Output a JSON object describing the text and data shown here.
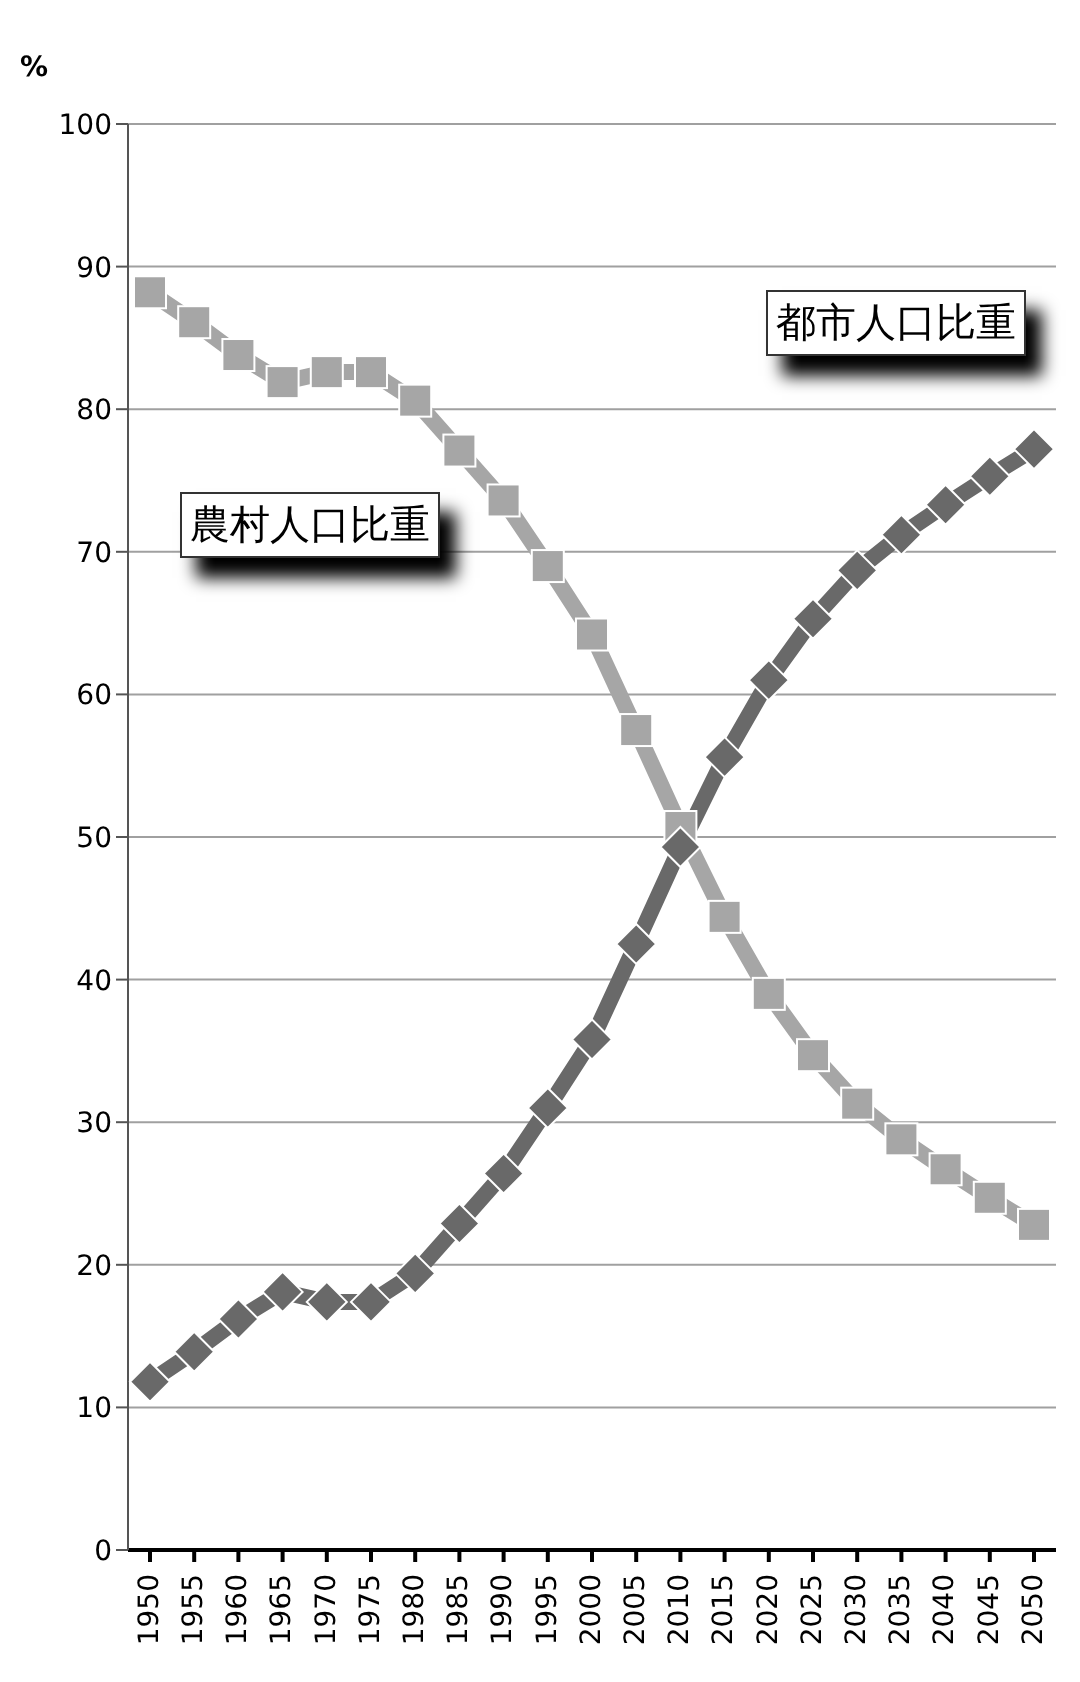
{
  "chart_data": {
    "type": "line",
    "ylabel": "%",
    "categories": [
      "1950",
      "1955",
      "1960",
      "1965",
      "1970",
      "1975",
      "1980",
      "1985",
      "1990",
      "1995",
      "2000",
      "2005",
      "2010",
      "2015",
      "2020",
      "2025",
      "2030",
      "2035",
      "2040",
      "2045",
      "2050"
    ],
    "series": [
      {
        "name": "農村人口比重",
        "color": "#a6a6a6",
        "marker": "square",
        "values": [
          88.2,
          86.1,
          83.8,
          81.9,
          82.6,
          82.6,
          80.6,
          77.1,
          73.6,
          69,
          64.2,
          57.5,
          50.7,
          44.4,
          39,
          34.7,
          31.3,
          28.8,
          26.7,
          24.7,
          22.8
        ]
      },
      {
        "name": "都市人口比重",
        "color": "#696969",
        "marker": "diamond",
        "values": [
          11.8,
          13.9,
          16.2,
          18.1,
          17.4,
          17.4,
          19.4,
          22.9,
          26.4,
          31,
          35.8,
          42.5,
          49.3,
          55.6,
          61,
          65.3,
          68.7,
          71.2,
          73.3,
          75.3,
          77.2
        ]
      }
    ],
    "ylim": [
      0,
      100
    ],
    "yticks": [
      0,
      10,
      20,
      30,
      40,
      50,
      60,
      70,
      80,
      90,
      100
    ],
    "grid": "y",
    "legend": false,
    "line_style": "solid"
  }
}
